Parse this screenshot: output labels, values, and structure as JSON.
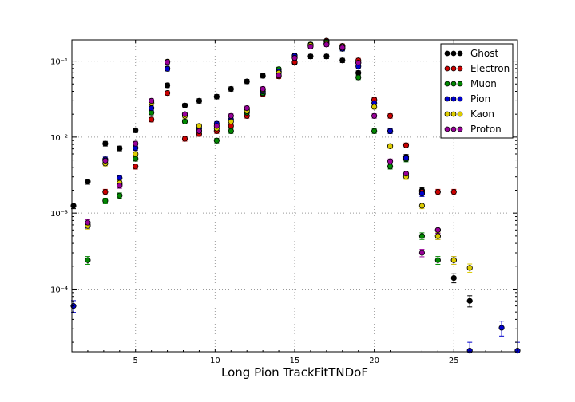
{
  "chart_data": {
    "type": "scatter",
    "title": "",
    "xlabel": "Long Pion TrackFitTNDoF",
    "ylabel": "",
    "xlim": [
      1,
      29
    ],
    "ylim": [
      1.5e-05,
      0.19
    ],
    "yscale": "log",
    "grid": true,
    "legend_position": "top-right",
    "x_ticks": [
      5,
      10,
      15,
      20,
      25
    ],
    "y_ticks": [
      {
        "value": 0.0001,
        "label": "10⁻⁴"
      },
      {
        "value": 0.001,
        "label": "10⁻³"
      },
      {
        "value": 0.01,
        "label": "10⁻²"
      },
      {
        "value": 0.1,
        "label": "10⁻¹"
      }
    ],
    "series": [
      {
        "name": "Ghost",
        "color": "#000000",
        "points": [
          [
            1.1,
            0.00125
          ],
          [
            2,
            0.0026
          ],
          [
            3.1,
            0.0082
          ],
          [
            4,
            0.0071
          ],
          [
            5,
            0.0123
          ],
          [
            7,
            0.048
          ],
          [
            8.1,
            0.026
          ],
          [
            9,
            0.03
          ],
          [
            10.1,
            0.034
          ],
          [
            11,
            0.043
          ],
          [
            12,
            0.054
          ],
          [
            13,
            0.064
          ],
          [
            14,
            0.072
          ],
          [
            15,
            0.095
          ],
          [
            16,
            0.115
          ],
          [
            17,
            0.115
          ],
          [
            18,
            0.102
          ],
          [
            19,
            0.07
          ],
          [
            20,
            0.031
          ],
          [
            21,
            0.012
          ],
          [
            22,
            0.0055
          ],
          [
            23,
            0.002
          ],
          [
            24,
            0.0005
          ],
          [
            25,
            0.00014
          ],
          [
            26,
            7e-05
          ]
        ]
      },
      {
        "name": "Electron",
        "color": "#cc0000",
        "points": [
          [
            3.1,
            0.0019
          ],
          [
            4,
            0.0024
          ],
          [
            5,
            0.0041
          ],
          [
            6,
            0.017
          ],
          [
            7,
            0.038
          ],
          [
            8.1,
            0.0095
          ],
          [
            9,
            0.011
          ],
          [
            10.1,
            0.012
          ],
          [
            11,
            0.014
          ],
          [
            12,
            0.019
          ],
          [
            13,
            0.037
          ],
          [
            14,
            0.063
          ],
          [
            15,
            0.097
          ],
          [
            16,
            0.16
          ],
          [
            17,
            0.185
          ],
          [
            18,
            0.158
          ],
          [
            19,
            0.102
          ],
          [
            20,
            0.031
          ],
          [
            21,
            0.019
          ],
          [
            22,
            0.0078
          ],
          [
            23,
            0.0019
          ],
          [
            24,
            0.0019
          ],
          [
            25,
            0.0019
          ]
        ]
      },
      {
        "name": "Muon",
        "color": "#008800",
        "points": [
          [
            2,
            0.00024
          ],
          [
            3.1,
            0.00145
          ],
          [
            4,
            0.0017
          ],
          [
            5,
            0.0052
          ],
          [
            6,
            0.021
          ],
          [
            7,
            0.08
          ],
          [
            8.1,
            0.016
          ],
          [
            9,
            0.012
          ],
          [
            10.1,
            0.009
          ],
          [
            11,
            0.012
          ],
          [
            12,
            0.021
          ],
          [
            13,
            0.038
          ],
          [
            14,
            0.078
          ],
          [
            15,
            0.118
          ],
          [
            16,
            0.165
          ],
          [
            17,
            0.18
          ],
          [
            18,
            0.145
          ],
          [
            19,
            0.061
          ],
          [
            20,
            0.012
          ],
          [
            21,
            0.0041
          ],
          [
            22,
            0.0051
          ],
          [
            23,
            0.0005
          ],
          [
            24,
            0.00024
          ]
        ]
      },
      {
        "name": "Pion",
        "color": "#0000cc",
        "points": [
          [
            1.1,
            6e-05
          ],
          [
            2,
            0.0007
          ],
          [
            3.1,
            0.0051
          ],
          [
            4,
            0.0029
          ],
          [
            5,
            0.0072
          ],
          [
            6,
            0.024
          ],
          [
            7,
            0.079
          ],
          [
            8.1,
            0.02
          ],
          [
            9,
            0.013
          ],
          [
            10.1,
            0.015
          ],
          [
            11,
            0.017
          ],
          [
            12,
            0.023
          ],
          [
            13,
            0.04
          ],
          [
            14,
            0.073
          ],
          [
            15,
            0.117
          ],
          [
            16,
            0.16
          ],
          [
            17,
            0.17
          ],
          [
            18,
            0.145
          ],
          [
            19,
            0.085
          ],
          [
            20,
            0.028
          ],
          [
            21,
            0.012
          ],
          [
            22,
            0.0053
          ],
          [
            23,
            0.0018
          ],
          [
            24,
            0.0006
          ],
          [
            25,
            0.00024
          ],
          [
            26,
            1.55e-05
          ],
          [
            28,
            3.1e-05
          ],
          [
            29,
            1.55e-05
          ]
        ]
      },
      {
        "name": "Kaon",
        "color": "#ddcc00",
        "points": [
          [
            2,
            0.00068
          ],
          [
            3.1,
            0.0045
          ],
          [
            4,
            0.0025
          ],
          [
            5,
            0.006
          ],
          [
            6,
            0.028
          ],
          [
            7,
            0.098
          ],
          [
            8.1,
            0.019
          ],
          [
            9,
            0.014
          ],
          [
            10.1,
            0.013
          ],
          [
            11,
            0.016
          ],
          [
            12,
            0.022
          ],
          [
            13,
            0.042
          ],
          [
            14,
            0.07
          ],
          [
            15,
            0.11
          ],
          [
            16,
            0.162
          ],
          [
            17,
            0.17
          ],
          [
            18,
            0.155
          ],
          [
            19,
            0.095
          ],
          [
            20,
            0.025
          ],
          [
            21,
            0.0076
          ],
          [
            22,
            0.003
          ],
          [
            23,
            0.00125
          ],
          [
            24,
            0.0005
          ],
          [
            25,
            0.00024
          ],
          [
            26,
            0.00019
          ]
        ]
      },
      {
        "name": "Proton",
        "color": "#990099",
        "points": [
          [
            2,
            0.00075
          ],
          [
            3.1,
            0.0049
          ],
          [
            4,
            0.0023
          ],
          [
            5,
            0.0082
          ],
          [
            6,
            0.03
          ],
          [
            7,
            0.097
          ],
          [
            8.1,
            0.02
          ],
          [
            9,
            0.012
          ],
          [
            10.1,
            0.014
          ],
          [
            11,
            0.019
          ],
          [
            12,
            0.024
          ],
          [
            13,
            0.043
          ],
          [
            14,
            0.065
          ],
          [
            15,
            0.11
          ],
          [
            16,
            0.155
          ],
          [
            17,
            0.165
          ],
          [
            18,
            0.15
          ],
          [
            19,
            0.095
          ],
          [
            20,
            0.019
          ],
          [
            21,
            0.0048
          ],
          [
            22,
            0.0033
          ],
          [
            23,
            0.0003
          ],
          [
            24,
            0.0006
          ]
        ]
      }
    ]
  }
}
